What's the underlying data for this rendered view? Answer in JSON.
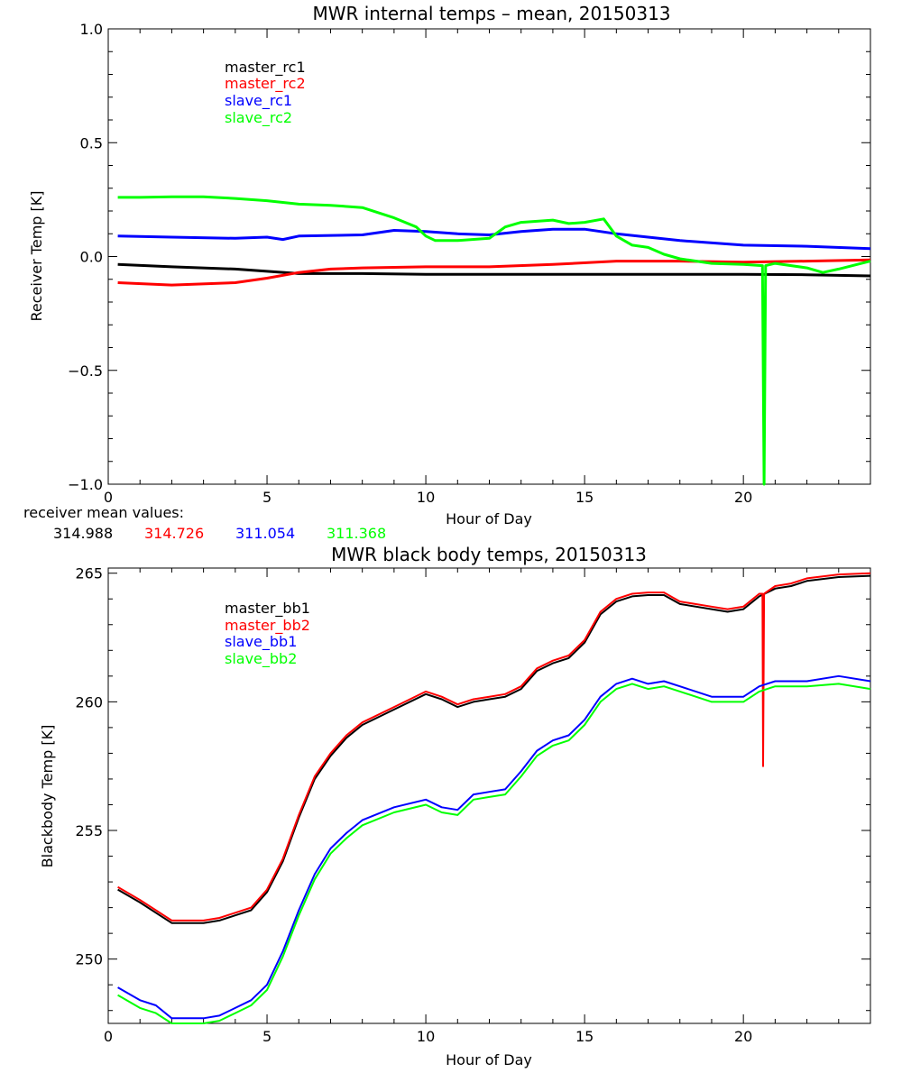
{
  "chart_data": [
    {
      "type": "line",
      "title": "MWR internal temps – mean, 20150313",
      "xlabel": "Hour of Day",
      "ylabel": "Receiver Temp [K]",
      "xlim": [
        0,
        24
      ],
      "ylim": [
        -1.0,
        1.0
      ],
      "xticks": [
        0,
        5,
        10,
        15,
        20
      ],
      "xtick_labels": [
        "0",
        "5",
        "10",
        "15",
        "20"
      ],
      "yticks": [
        -1.0,
        -0.5,
        0.0,
        0.5,
        1.0
      ],
      "ytick_labels": [
        "−1.0",
        "−0.5",
        "0.0",
        "0.5",
        "1.0"
      ],
      "legend_placement": "top-left",
      "series": [
        {
          "name": "master_rc1",
          "color": "#000000",
          "points": [
            [
              0.3,
              -0.035
            ],
            [
              2,
              -0.045
            ],
            [
              4,
              -0.055
            ],
            [
              6,
              -0.075
            ],
            [
              8,
              -0.075
            ],
            [
              10,
              -0.078
            ],
            [
              12,
              -0.078
            ],
            [
              14,
              -0.078
            ],
            [
              16,
              -0.078
            ],
            [
              18,
              -0.078
            ],
            [
              20,
              -0.078
            ],
            [
              22,
              -0.08
            ],
            [
              24,
              -0.085
            ]
          ]
        },
        {
          "name": "master_rc2",
          "color": "#ff0000",
          "points": [
            [
              0.3,
              -0.115
            ],
            [
              2,
              -0.125
            ],
            [
              4,
              -0.115
            ],
            [
              5,
              -0.095
            ],
            [
              6,
              -0.07
            ],
            [
              7,
              -0.055
            ],
            [
              8,
              -0.05
            ],
            [
              10,
              -0.045
            ],
            [
              12,
              -0.045
            ],
            [
              14,
              -0.035
            ],
            [
              16,
              -0.02
            ],
            [
              18,
              -0.02
            ],
            [
              20,
              -0.025
            ],
            [
              22,
              -0.02
            ],
            [
              24,
              -0.015
            ]
          ]
        },
        {
          "name": "slave_rc1",
          "color": "#0000ff",
          "points": [
            [
              0.3,
              0.09
            ],
            [
              2,
              0.085
            ],
            [
              4,
              0.08
            ],
            [
              5,
              0.085
            ],
            [
              5.5,
              0.075
            ],
            [
              6,
              0.09
            ],
            [
              8,
              0.095
            ],
            [
              9,
              0.115
            ],
            [
              10,
              0.11
            ],
            [
              11,
              0.1
            ],
            [
              12,
              0.095
            ],
            [
              13,
              0.11
            ],
            [
              14,
              0.12
            ],
            [
              15,
              0.12
            ],
            [
              16,
              0.1
            ],
            [
              17,
              0.085
            ],
            [
              18,
              0.07
            ],
            [
              20,
              0.05
            ],
            [
              22,
              0.045
            ],
            [
              24,
              0.035
            ]
          ]
        },
        {
          "name": "slave_rc2",
          "color": "#00ff00",
          "points": [
            [
              0.3,
              0.26
            ],
            [
              1,
              0.26
            ],
            [
              2,
              0.262
            ],
            [
              3,
              0.262
            ],
            [
              4,
              0.255
            ],
            [
              5,
              0.245
            ],
            [
              6,
              0.23
            ],
            [
              7,
              0.225
            ],
            [
              8,
              0.215
            ],
            [
              9,
              0.17
            ],
            [
              9.7,
              0.13
            ],
            [
              10,
              0.09
            ],
            [
              10.3,
              0.07
            ],
            [
              11,
              0.07
            ],
            [
              12,
              0.08
            ],
            [
              12.5,
              0.13
            ],
            [
              13,
              0.15
            ],
            [
              14,
              0.16
            ],
            [
              14.5,
              0.145
            ],
            [
              15,
              0.15
            ],
            [
              15.6,
              0.165
            ],
            [
              16,
              0.09
            ],
            [
              16.5,
              0.05
            ],
            [
              17,
              0.04
            ],
            [
              17.5,
              0.01
            ],
            [
              18,
              -0.01
            ],
            [
              19,
              -0.03
            ],
            [
              20,
              -0.035
            ],
            [
              20.6,
              -0.04
            ],
            [
              20.65,
              -1.0
            ],
            [
              20.7,
              -0.04
            ],
            [
              21,
              -0.03
            ],
            [
              22,
              -0.05
            ],
            [
              22.5,
              -0.07
            ],
            [
              23,
              -0.055
            ],
            [
              24,
              -0.02
            ]
          ]
        }
      ],
      "annotation": {
        "label": "receiver mean values:",
        "values": [
          {
            "series": "master_rc1",
            "text": "314.988",
            "color": "#000000"
          },
          {
            "series": "master_rc2",
            "text": "314.726",
            "color": "#ff0000"
          },
          {
            "series": "slave_rc1",
            "text": "311.054",
            "color": "#0000ff"
          },
          {
            "series": "slave_rc2",
            "text": "311.368",
            "color": "#00ff00"
          }
        ]
      }
    },
    {
      "type": "line",
      "title": "MWR black body temps, 20150313",
      "xlabel": "Hour of Day",
      "ylabel": "Blackbody Temp [K]",
      "xlim": [
        0,
        24
      ],
      "ylim": [
        247.5,
        265.2
      ],
      "xticks": [
        0,
        5,
        10,
        15,
        20
      ],
      "xtick_labels": [
        "0",
        "5",
        "10",
        "15",
        "20"
      ],
      "yticks": [
        250,
        255,
        260,
        265
      ],
      "ytick_labels": [
        "250",
        "255",
        "260",
        "265"
      ],
      "legend_placement": "top-left",
      "series": [
        {
          "name": "master_bb1",
          "color": "#000000",
          "points": [
            [
              0.3,
              252.7
            ],
            [
              1,
              252.2
            ],
            [
              1.5,
              251.8
            ],
            [
              2,
              251.4
            ],
            [
              3,
              251.4
            ],
            [
              3.5,
              251.5
            ],
            [
              4,
              251.7
            ],
            [
              4.5,
              251.9
            ],
            [
              5,
              252.6
            ],
            [
              5.5,
              253.8
            ],
            [
              6,
              255.5
            ],
            [
              6.5,
              257.0
            ],
            [
              7,
              257.9
            ],
            [
              7.5,
              258.6
            ],
            [
              8,
              259.1
            ],
            [
              9,
              259.7
            ],
            [
              10,
              260.3
            ],
            [
              10.5,
              260.1
            ],
            [
              11,
              259.8
            ],
            [
              11.5,
              260.0
            ],
            [
              12,
              260.1
            ],
            [
              12.5,
              260.2
            ],
            [
              13,
              260.5
            ],
            [
              13.5,
              261.2
            ],
            [
              14,
              261.5
            ],
            [
              14.5,
              261.7
            ],
            [
              15,
              262.3
            ],
            [
              15.5,
              263.4
            ],
            [
              16,
              263.9
            ],
            [
              16.5,
              264.1
            ],
            [
              17,
              264.15
            ],
            [
              17.5,
              264.15
            ],
            [
              18,
              263.8
            ],
            [
              19,
              263.6
            ],
            [
              19.5,
              263.5
            ],
            [
              20,
              263.6
            ],
            [
              20.5,
              264.1
            ],
            [
              21,
              264.4
            ],
            [
              21.5,
              264.5
            ],
            [
              22,
              264.7
            ],
            [
              23,
              264.85
            ],
            [
              24,
              264.9
            ]
          ]
        },
        {
          "name": "master_bb2",
          "color": "#ff0000",
          "points": [
            [
              0.3,
              252.8
            ],
            [
              1,
              252.3
            ],
            [
              1.5,
              251.9
            ],
            [
              2,
              251.5
            ],
            [
              3,
              251.5
            ],
            [
              3.5,
              251.6
            ],
            [
              4,
              251.8
            ],
            [
              4.5,
              252.0
            ],
            [
              5,
              252.7
            ],
            [
              5.5,
              253.9
            ],
            [
              6,
              255.6
            ],
            [
              6.5,
              257.1
            ],
            [
              7,
              258.0
            ],
            [
              7.5,
              258.7
            ],
            [
              8,
              259.2
            ],
            [
              9,
              259.8
            ],
            [
              10,
              260.4
            ],
            [
              10.5,
              260.2
            ],
            [
              11,
              259.9
            ],
            [
              11.5,
              260.1
            ],
            [
              12,
              260.2
            ],
            [
              12.5,
              260.3
            ],
            [
              13,
              260.6
            ],
            [
              13.5,
              261.3
            ],
            [
              14,
              261.6
            ],
            [
              14.5,
              261.8
            ],
            [
              15,
              262.4
            ],
            [
              15.5,
              263.5
            ],
            [
              16,
              264.0
            ],
            [
              16.5,
              264.2
            ],
            [
              17,
              264.25
            ],
            [
              17.5,
              264.25
            ],
            [
              18,
              263.9
            ],
            [
              19,
              263.7
            ],
            [
              19.5,
              263.6
            ],
            [
              20,
              263.7
            ],
            [
              20.5,
              264.2
            ],
            [
              20.6,
              264.2
            ],
            [
              20.62,
              257.5
            ],
            [
              20.65,
              264.2
            ],
            [
              21,
              264.5
            ],
            [
              21.5,
              264.6
            ],
            [
              22,
              264.8
            ],
            [
              23,
              264.95
            ],
            [
              24,
              265.0
            ]
          ]
        },
        {
          "name": "slave_bb1",
          "color": "#0000ff",
          "points": [
            [
              0.3,
              248.9
            ],
            [
              1,
              248.4
            ],
            [
              1.5,
              248.2
            ],
            [
              2,
              247.7
            ],
            [
              3,
              247.7
            ],
            [
              3.5,
              247.8
            ],
            [
              4,
              248.1
            ],
            [
              4.5,
              248.4
            ],
            [
              5,
              249.0
            ],
            [
              5.5,
              250.3
            ],
            [
              6,
              251.9
            ],
            [
              6.5,
              253.3
            ],
            [
              7,
              254.3
            ],
            [
              7.5,
              254.9
            ],
            [
              8,
              255.4
            ],
            [
              9,
              255.9
            ],
            [
              10,
              256.2
            ],
            [
              10.5,
              255.9
            ],
            [
              11,
              255.8
            ],
            [
              11.5,
              256.4
            ],
            [
              12,
              256.5
            ],
            [
              12.5,
              256.6
            ],
            [
              13,
              257.3
            ],
            [
              13.5,
              258.1
            ],
            [
              14,
              258.5
            ],
            [
              14.5,
              258.7
            ],
            [
              15,
              259.3
            ],
            [
              15.5,
              260.2
            ],
            [
              16,
              260.7
            ],
            [
              16.5,
              260.9
            ],
            [
              17,
              260.7
            ],
            [
              17.5,
              260.8
            ],
            [
              18,
              260.6
            ],
            [
              19,
              260.2
            ],
            [
              20,
              260.2
            ],
            [
              20.5,
              260.6
            ],
            [
              21,
              260.8
            ],
            [
              22,
              260.8
            ],
            [
              23,
              261.0
            ],
            [
              24,
              260.8
            ]
          ]
        },
        {
          "name": "slave_bb2",
          "color": "#00ff00",
          "points": [
            [
              0.3,
              248.6
            ],
            [
              1,
              248.1
            ],
            [
              1.5,
              247.9
            ],
            [
              2,
              247.5
            ],
            [
              3,
              247.5
            ],
            [
              3.5,
              247.6
            ],
            [
              4,
              247.9
            ],
            [
              4.5,
              248.2
            ],
            [
              5,
              248.8
            ],
            [
              5.5,
              250.1
            ],
            [
              6,
              251.7
            ],
            [
              6.5,
              253.1
            ],
            [
              7,
              254.1
            ],
            [
              7.5,
              254.7
            ],
            [
              8,
              255.2
            ],
            [
              9,
              255.7
            ],
            [
              10,
              256.0
            ],
            [
              10.5,
              255.7
            ],
            [
              11,
              255.6
            ],
            [
              11.5,
              256.2
            ],
            [
              12,
              256.3
            ],
            [
              12.5,
              256.4
            ],
            [
              13,
              257.1
            ],
            [
              13.5,
              257.9
            ],
            [
              14,
              258.3
            ],
            [
              14.5,
              258.5
            ],
            [
              15,
              259.1
            ],
            [
              15.5,
              260.0
            ],
            [
              16,
              260.5
            ],
            [
              16.5,
              260.7
            ],
            [
              17,
              260.5
            ],
            [
              17.5,
              260.6
            ],
            [
              18,
              260.4
            ],
            [
              19,
              260.0
            ],
            [
              20,
              260.0
            ],
            [
              20.5,
              260.4
            ],
            [
              21,
              260.6
            ],
            [
              22,
              260.6
            ],
            [
              23,
              260.7
            ],
            [
              24,
              260.5
            ]
          ]
        }
      ]
    }
  ]
}
